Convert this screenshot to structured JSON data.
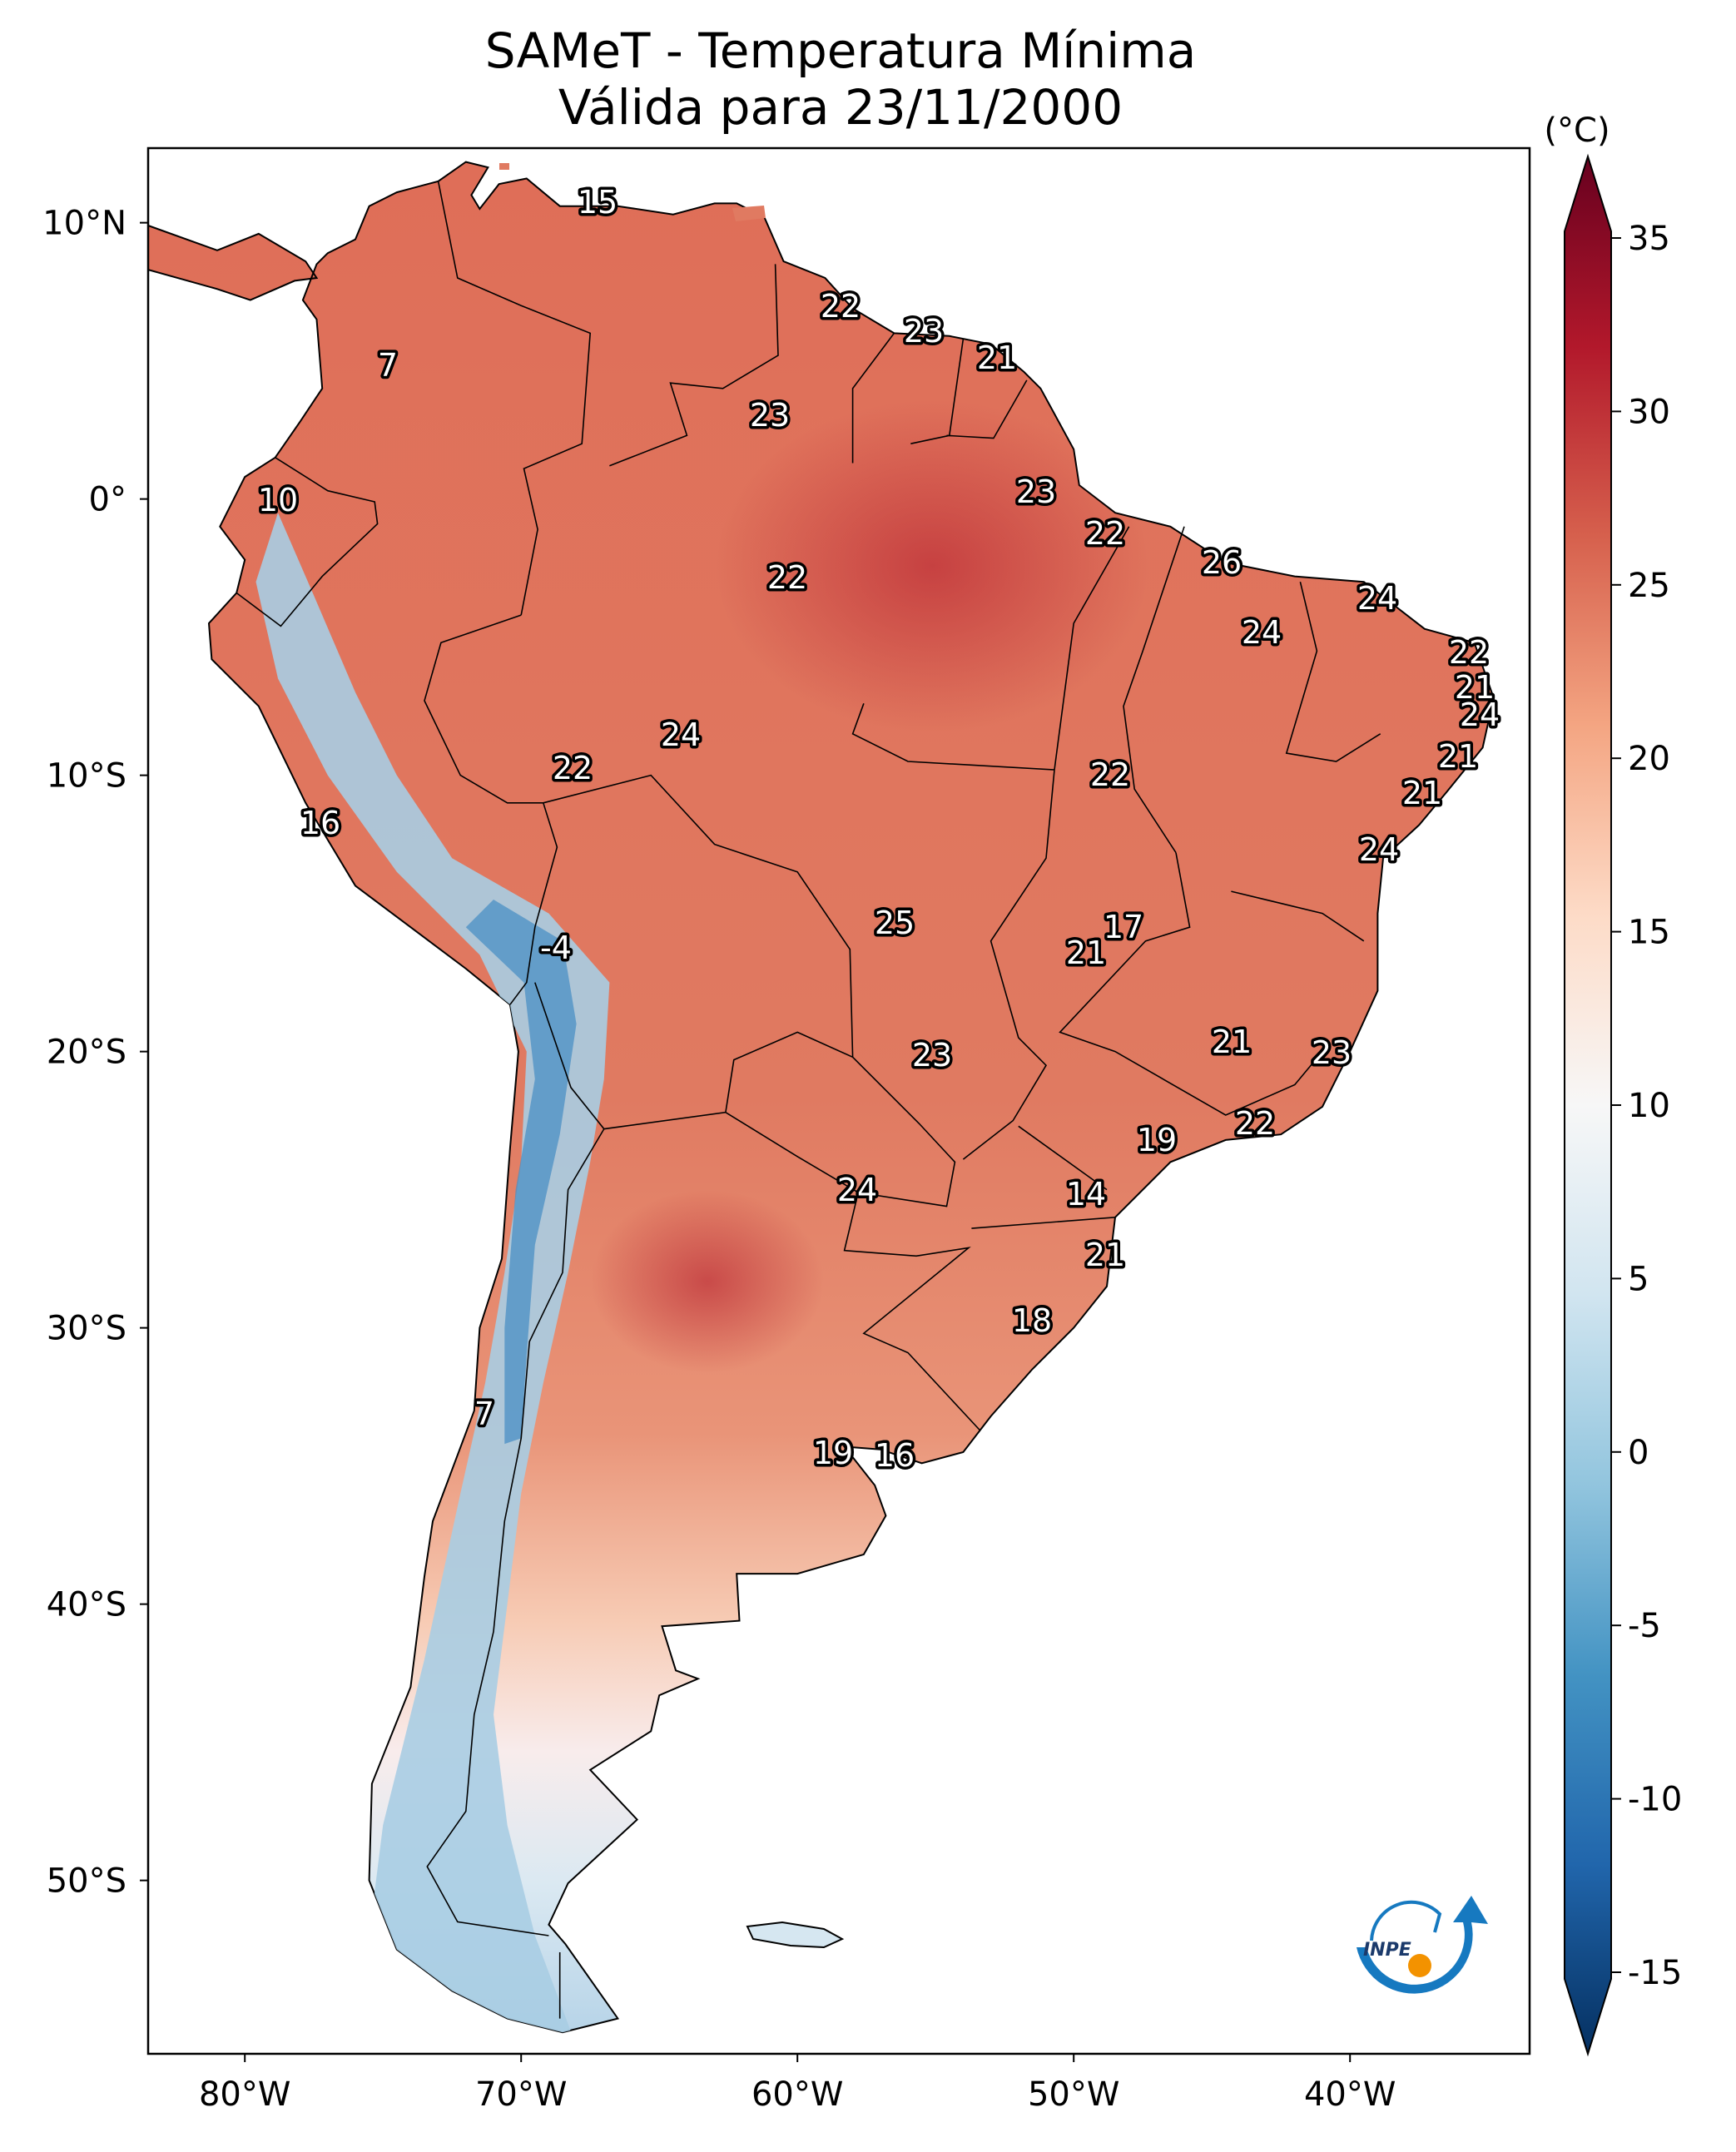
{
  "title": {
    "line1": "SAMeT - Temperatura Mínima",
    "line2": "Válida para 23/11/2000"
  },
  "axes": {
    "lon_ticks": [
      "80°W",
      "70°W",
      "60°W",
      "50°W",
      "40°W"
    ],
    "lat_ticks": [
      "10°N",
      "0°",
      "10°S",
      "20°S",
      "30°S",
      "40°S",
      "50°S"
    ]
  },
  "colorbar": {
    "unit": "(°C)",
    "ticks": [
      "35",
      "30",
      "25",
      "20",
      "15",
      "10",
      "5",
      "0",
      "-5",
      "-10",
      "-15"
    ],
    "colors": [
      "#67001f",
      "#b2182b",
      "#d6604d",
      "#f4a582",
      "#fddbc7",
      "#f7f7f7",
      "#d1e5f0",
      "#92c5de",
      "#4393c3",
      "#2166ac",
      "#053061"
    ]
  },
  "stations": [
    {
      "value": "15"
    },
    {
      "value": "22"
    },
    {
      "value": "23"
    },
    {
      "value": "21"
    },
    {
      "value": "7"
    },
    {
      "value": "23"
    },
    {
      "value": "10"
    },
    {
      "value": "23"
    },
    {
      "value": "22"
    },
    {
      "value": "22"
    },
    {
      "value": "26"
    },
    {
      "value": "24"
    },
    {
      "value": "24"
    },
    {
      "value": "22"
    },
    {
      "value": "21"
    },
    {
      "value": "24"
    },
    {
      "value": "24"
    },
    {
      "value": "22"
    },
    {
      "value": "22"
    },
    {
      "value": "21"
    },
    {
      "value": "21"
    },
    {
      "value": "16"
    },
    {
      "value": "24"
    },
    {
      "value": "25"
    },
    {
      "value": "17"
    },
    {
      "value": "21"
    },
    {
      "value": "-4"
    },
    {
      "value": "21"
    },
    {
      "value": "23"
    },
    {
      "value": "23"
    },
    {
      "value": "22"
    },
    {
      "value": "19"
    },
    {
      "value": "24"
    },
    {
      "value": "14"
    },
    {
      "value": "21"
    },
    {
      "value": "18"
    },
    {
      "value": "7"
    },
    {
      "value": "19"
    },
    {
      "value": "16"
    }
  ],
  "logo": {
    "text": "INPE",
    "colors": [
      "#1679c0",
      "#f39200"
    ]
  }
}
